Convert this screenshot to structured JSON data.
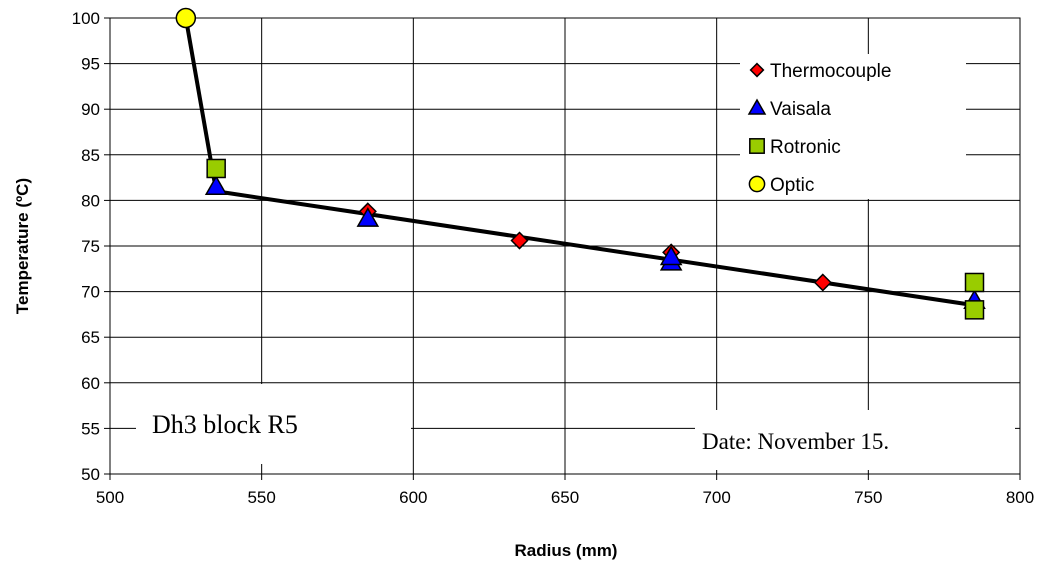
{
  "chart_data": {
    "type": "scatter",
    "xlabel": "Radius (mm)",
    "ylabel": "Temperature (ºC)",
    "xlim": [
      500,
      800
    ],
    "ylim": [
      50,
      100
    ],
    "xticks": [
      500,
      550,
      600,
      650,
      700,
      750,
      800
    ],
    "yticks": [
      50,
      55,
      60,
      65,
      70,
      75,
      80,
      85,
      90,
      95,
      100
    ],
    "grid": true,
    "legend_position": "top-right",
    "series": [
      {
        "name": "Thermocouple",
        "marker": "diamond",
        "color": "#ff0000",
        "points": [
          [
            585,
            78.8
          ],
          [
            635,
            75.6
          ],
          [
            685,
            74.3
          ],
          [
            735,
            71.0
          ]
        ]
      },
      {
        "name": "Vaisala",
        "marker": "triangle",
        "color": "#0000ff",
        "points": [
          [
            535,
            81.5
          ],
          [
            585,
            78.0
          ],
          [
            685,
            73.2
          ],
          [
            685,
            73.8
          ],
          [
            785,
            69.0
          ]
        ]
      },
      {
        "name": "Rotronic",
        "marker": "square",
        "color": "#99cc00",
        "points": [
          [
            535,
            83.5
          ],
          [
            785,
            71.0
          ],
          [
            785,
            68.0
          ]
        ]
      },
      {
        "name": "Optic",
        "marker": "circle",
        "color": "#ffff00",
        "points": [
          [
            525,
            100.0
          ]
        ]
      }
    ],
    "fit_line": {
      "points": [
        [
          525,
          100.0
        ],
        [
          535,
          81.0
        ],
        [
          785,
          68.5
        ]
      ],
      "color": "#000000"
    },
    "annotations": [
      {
        "text": "Dh3 block R5"
      },
      {
        "text": "Date: November 15."
      }
    ]
  }
}
